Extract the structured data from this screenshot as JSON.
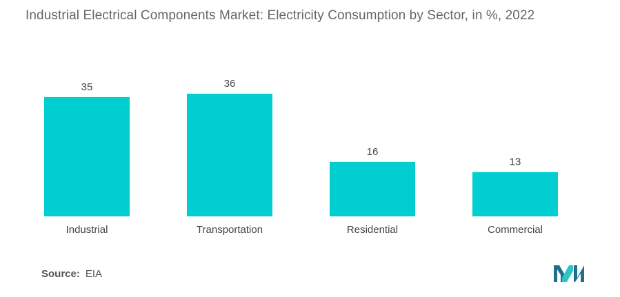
{
  "chart_data": {
    "type": "bar",
    "title": "Industrial Electrical Components Market: Electricity Consumption by Sector, in %,  2022",
    "categories": [
      "Industrial",
      "Transportation",
      "Residential",
      "Commercial"
    ],
    "values": [
      35,
      36,
      16,
      13
    ],
    "xlabel": "",
    "ylabel": "",
    "ylim": [
      0,
      36
    ],
    "grid": false,
    "legend": "none",
    "bar_color": "#00CED1"
  },
  "source": {
    "label": "Source:",
    "value": "EIA"
  },
  "logo": {
    "icon": "mordor-intelligence-logo",
    "colors": [
      "#1e6e8c",
      "#2ec4c6"
    ]
  }
}
